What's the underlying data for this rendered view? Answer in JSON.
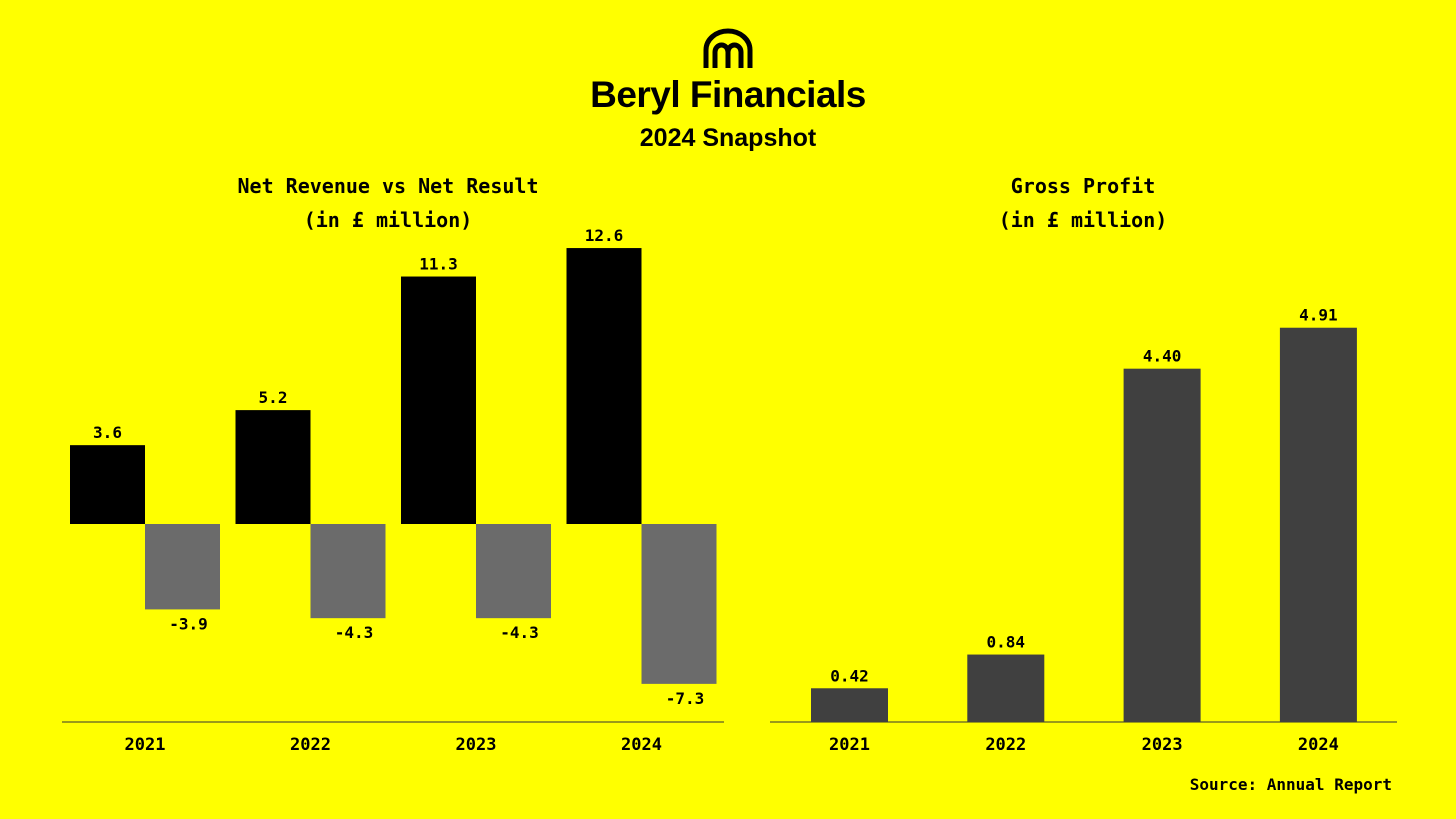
{
  "header": {
    "logo_icon": "beryl-arch-logo-icon",
    "title": "Beryl Financials",
    "subtitle": "2024 Snapshot"
  },
  "colors": {
    "background": "#ffff00",
    "revenue": "#000000",
    "result": "#6b6b6b",
    "gross_profit": "#404040"
  },
  "chart_data": [
    {
      "type": "bar",
      "title": "Net Revenue vs Net Result",
      "subtitle": "(in £ million)",
      "categories": [
        "2021",
        "2022",
        "2023",
        "2024"
      ],
      "series": [
        {
          "values": [
            3.6,
            5.2,
            11.3,
            12.6
          ],
          "labels": [
            "3.6",
            "5.2",
            "11.3",
            "12.6"
          ]
        },
        {
          "values": [
            -3.9,
            -4.3,
            -4.3,
            -7.3
          ],
          "labels": [
            "-3.9",
            "-4.3",
            "-4.3",
            "-7.3"
          ]
        }
      ],
      "ylim": [
        -9,
        14
      ]
    },
    {
      "type": "bar",
      "title": "Gross Profit",
      "subtitle": "(in £ million)",
      "categories": [
        "2021",
        "2022",
        "2023",
        "2024"
      ],
      "values": [
        0.42,
        0.84,
        4.4,
        4.91
      ],
      "labels": [
        "0.42",
        "0.84",
        "4.40",
        "4.91"
      ],
      "ylim": [
        0,
        6
      ]
    }
  ],
  "footer": {
    "source": "Source: Annual Report"
  }
}
